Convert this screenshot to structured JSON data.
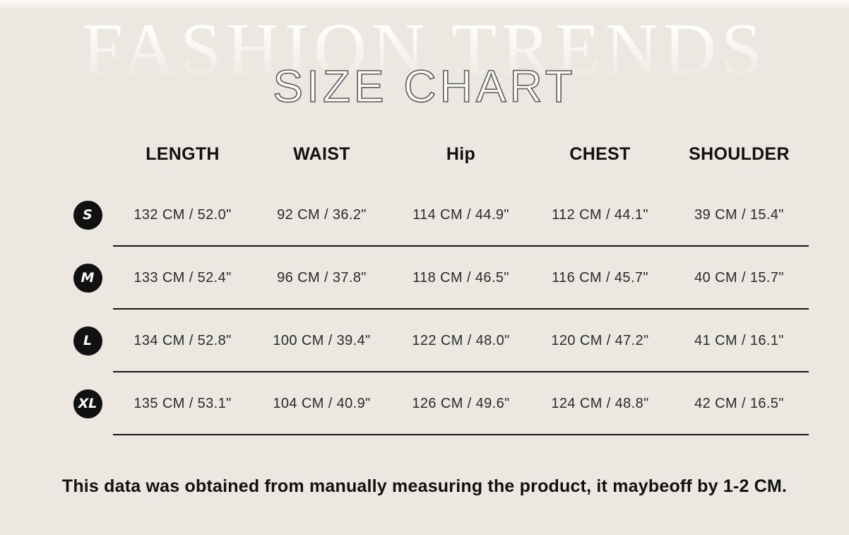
{
  "colors": {
    "background": "#ece7e1",
    "badge_background": "#111111",
    "header_text": "#111111",
    "body_text": "#2b2b2b",
    "divider": "#151515",
    "title_fill": "#fcfbf9",
    "title_outline": "#5c5c5c",
    "watermark": "#ffffff"
  },
  "watermark": "FASHION TRENDS",
  "title": "SIZE CHART",
  "chart_data": {
    "type": "table",
    "headers": [
      "LENGTH",
      "WAIST",
      "Hip",
      "CHEST",
      "SHOULDER"
    ],
    "rows": [
      {
        "size": "S",
        "cells": [
          "132 CM / 52.0\"",
          "92 CM / 36.2\"",
          "114 CM / 44.9\"",
          "112 CM / 44.1\"",
          "39 CM / 15.4\""
        ]
      },
      {
        "size": "M",
        "cells": [
          "133 CM / 52.4\"",
          "96 CM / 37.8\"",
          "118 CM / 46.5\"",
          "116 CM / 45.7\"",
          "40 CM / 15.7\""
        ]
      },
      {
        "size": "L",
        "cells": [
          "134 CM / 52.8\"",
          "100 CM / 39.4\"",
          "122 CM / 48.0\"",
          "120 CM / 47.2\"",
          "41 CM / 16.1\""
        ]
      },
      {
        "size": "XL",
        "cells": [
          "135 CM / 53.1\"",
          "104 CM / 40.9\"",
          "126 CM / 49.6\"",
          "124 CM / 48.8\"",
          "42 CM / 16.5\""
        ]
      }
    ]
  },
  "footnote": "This data was obtained from manually measuring the product, it maybeoff by 1-2 CM."
}
